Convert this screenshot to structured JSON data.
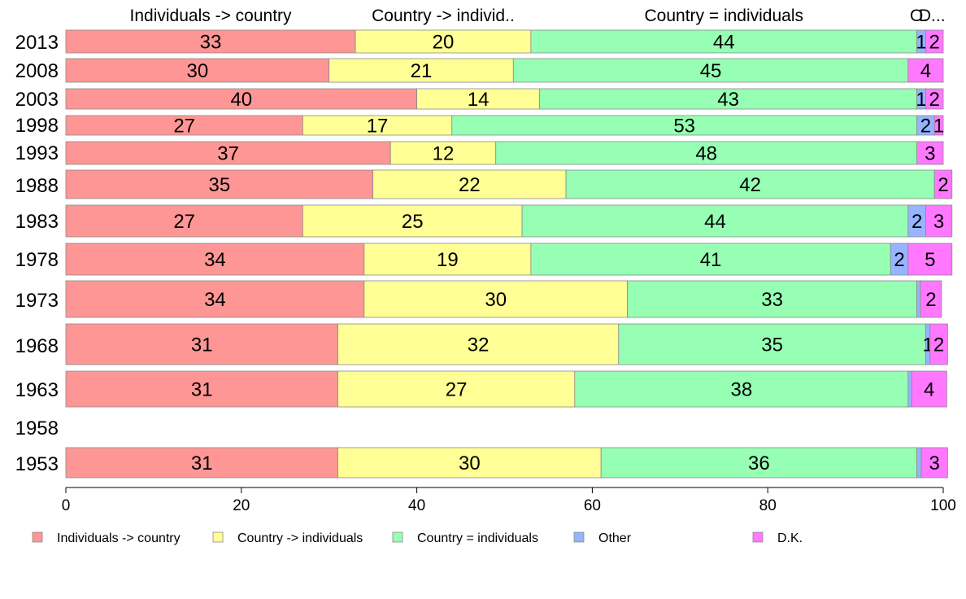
{
  "chart_data": {
    "type": "bar",
    "orientation": "horizontal",
    "stacked": true,
    "title": "",
    "xlabel": "",
    "ylabel": "",
    "xlim": [
      0,
      100
    ],
    "x_ticks": [
      "0",
      "20",
      "40",
      "60",
      "80",
      "100"
    ],
    "grid": false,
    "legend_position": "bottom",
    "categories": [
      "2013",
      "2008",
      "2003",
      "1998",
      "1993",
      "1988",
      "1983",
      "1978",
      "1973",
      "1968",
      "1963",
      "1958",
      "1953"
    ],
    "top_labels": [
      "Individuals -> country",
      "Country -> individ..",
      "Country = individuals",
      "O.",
      "D..."
    ],
    "series": [
      {
        "name": "Individuals -> country",
        "color": "#ff9696",
        "values": [
          33,
          30,
          40,
          27,
          37,
          35,
          27,
          34,
          34,
          31,
          31,
          null,
          31
        ],
        "labels": [
          "33",
          "30",
          "40",
          "27",
          "37",
          "35",
          "27",
          "34",
          "34",
          "31",
          "31",
          "",
          "31"
        ]
      },
      {
        "name": "Country -> individuals",
        "color": "#ffff96",
        "values": [
          20,
          21,
          14,
          17,
          12,
          22,
          25,
          19,
          30,
          32,
          27,
          null,
          30
        ],
        "labels": [
          "20",
          "21",
          "14",
          "17",
          "12",
          "22",
          "25",
          "19",
          "30",
          "32",
          "27",
          "",
          "30"
        ]
      },
      {
        "name": "Country = individuals",
        "color": "#96ffb4",
        "values": [
          44,
          45,
          43,
          53,
          48,
          42,
          44,
          41,
          33,
          35,
          38,
          null,
          36
        ],
        "labels": [
          "44",
          "45",
          "43",
          "53",
          "48",
          "42",
          "44",
          "41",
          "33",
          "35",
          "38",
          "",
          "36"
        ]
      },
      {
        "name": "Other",
        "color": "#96b4ff",
        "values": [
          1,
          0,
          1,
          2,
          0,
          0,
          2,
          2,
          0.4,
          0.5,
          0.4,
          null,
          0.5
        ],
        "labels": [
          "1",
          "",
          "1",
          "2",
          "",
          "",
          "2",
          "2",
          "",
          "1",
          "",
          "",
          ""
        ]
      },
      {
        "name": "D.K.",
        "color": "#ff78ff",
        "values": [
          2,
          4,
          2,
          1,
          3,
          2,
          3,
          5,
          2.4,
          2,
          4,
          null,
          3
        ],
        "labels": [
          "2",
          "4",
          "2",
          "1",
          "3",
          "2",
          "3",
          "5",
          "2",
          "2",
          "4",
          "",
          "3"
        ]
      }
    ]
  }
}
